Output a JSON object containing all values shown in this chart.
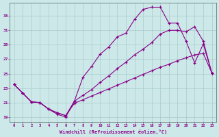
{
  "xlabel": "Windchill (Refroidissement éolien,°C)",
  "bg_color": "#cce8e8",
  "line_color": "#880088",
  "grid_color": "#aacccc",
  "xlim_min": -0.5,
  "xlim_max": 23.5,
  "ylim_min": 18.3,
  "ylim_max": 34.8,
  "xticks": [
    0,
    1,
    2,
    3,
    4,
    5,
    6,
    7,
    8,
    9,
    10,
    11,
    12,
    13,
    14,
    15,
    16,
    17,
    18,
    19,
    20,
    21,
    22,
    23
  ],
  "yticks": [
    19,
    21,
    23,
    25,
    27,
    29,
    31,
    33
  ],
  "curve1_x": [
    0,
    1,
    2,
    3,
    4,
    5,
    6,
    7,
    8,
    9,
    10,
    11,
    12,
    13,
    14,
    15,
    16,
    17,
    18,
    19,
    20,
    21,
    22,
    23
  ],
  "curve1_y": [
    23.5,
    22.3,
    21.1,
    21.0,
    20.1,
    19.4,
    19.0,
    21.2,
    24.5,
    26.0,
    27.7,
    28.7,
    30.1,
    30.6,
    32.5,
    33.9,
    34.2,
    34.2,
    32.0,
    32.0,
    29.5,
    26.5,
    29.1,
    25.1
  ],
  "curve2_x": [
    0,
    1,
    2,
    3,
    4,
    5,
    6,
    7,
    8,
    9,
    10,
    11,
    12,
    13,
    14,
    15,
    16,
    17,
    18,
    19,
    20,
    21,
    22,
    23
  ],
  "curve2_y": [
    23.5,
    22.3,
    21.1,
    21.0,
    20.1,
    19.6,
    19.2,
    21.2,
    22.0,
    22.8,
    23.8,
    24.7,
    25.7,
    26.6,
    27.6,
    28.4,
    29.3,
    30.5,
    31.0,
    31.0,
    30.8,
    31.5,
    29.5,
    25.1
  ],
  "curve3_x": [
    0,
    1,
    2,
    3,
    4,
    5,
    6,
    7,
    8,
    9,
    10,
    11,
    12,
    13,
    14,
    15,
    16,
    17,
    18,
    19,
    20,
    21,
    22,
    23
  ],
  "curve3_y": [
    23.5,
    22.3,
    21.1,
    21.0,
    20.1,
    19.6,
    19.2,
    20.9,
    21.4,
    21.9,
    22.4,
    22.9,
    23.4,
    23.9,
    24.4,
    24.9,
    25.4,
    25.9,
    26.3,
    26.8,
    27.2,
    27.6,
    27.8,
    25.1
  ]
}
